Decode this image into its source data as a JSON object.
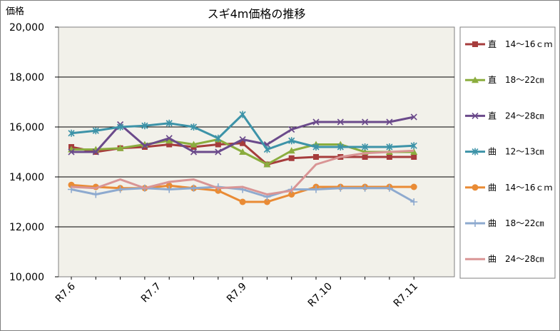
{
  "chart_data": {
    "type": "line",
    "title": "スギ4m価格の推移",
    "ylabel": "価格",
    "xlabel": "",
    "ylim": [
      10000,
      20000
    ],
    "yticks": [
      "10,000",
      "12,000",
      "14,000",
      "16,000",
      "18,000",
      "20,000"
    ],
    "ytick_values": [
      10000,
      12000,
      14000,
      16000,
      18000,
      20000
    ],
    "xtick_labels": [
      "R7.6",
      "R7.7",
      "R7.9",
      "R7.10",
      "R7.11"
    ],
    "xtick_positions": [
      0,
      3.5,
      7,
      10.5,
      14
    ],
    "x_count": 15,
    "grid": true,
    "legend_position": "right",
    "plot_background": "#f2f1ea",
    "series": [
      {
        "name": "直　14～16ｃｍ",
        "color": "#a63c3c",
        "marker": "square",
        "values": [
          15200,
          15000,
          15150,
          15200,
          15300,
          15200,
          15300,
          15350,
          14500,
          14750,
          14800,
          14800,
          14800,
          14800,
          14800
        ]
      },
      {
        "name": "直　18～22㎝",
        "color": "#8bad3e",
        "marker": "triangle",
        "values": [
          15100,
          15100,
          15150,
          15300,
          15450,
          15300,
          15500,
          15000,
          14500,
          15050,
          15300,
          15300,
          15000,
          15000,
          15000
        ]
      },
      {
        "name": "直　24～28㎝",
        "color": "#6b4a8b",
        "marker": "x",
        "values": [
          15000,
          15000,
          16100,
          15250,
          15550,
          15000,
          15000,
          15500,
          15300,
          15900,
          16200,
          16200,
          16200,
          16200,
          16400
        ]
      },
      {
        "name": "曲　12～13㎝",
        "color": "#3d93a8",
        "marker": "star",
        "values": [
          15750,
          15850,
          16000,
          16050,
          16150,
          16000,
          15550,
          16500,
          15100,
          15450,
          15200,
          15200,
          15200,
          15200,
          15250
        ]
      },
      {
        "name": "曲　14～16ｃｍ",
        "color": "#e98b35",
        "marker": "circle",
        "values": [
          13680,
          13600,
          13550,
          13550,
          13650,
          13550,
          13450,
          13000,
          13000,
          13300,
          13600,
          13600,
          13600,
          13600,
          13600
        ]
      },
      {
        "name": "曲　18～22㎝",
        "color": "#8eaacf",
        "marker": "plus",
        "values": [
          13500,
          13300,
          13500,
          13550,
          13500,
          13550,
          13600,
          13500,
          13200,
          13500,
          13500,
          13550,
          13550,
          13550,
          13000
        ]
      },
      {
        "name": "曲　24～28㎝",
        "color": "#d99595",
        "marker": "none",
        "values": [
          13600,
          13550,
          13900,
          13550,
          13800,
          13900,
          13550,
          13600,
          13300,
          13450,
          14500,
          14800,
          14950,
          15000,
          15050
        ]
      }
    ]
  }
}
